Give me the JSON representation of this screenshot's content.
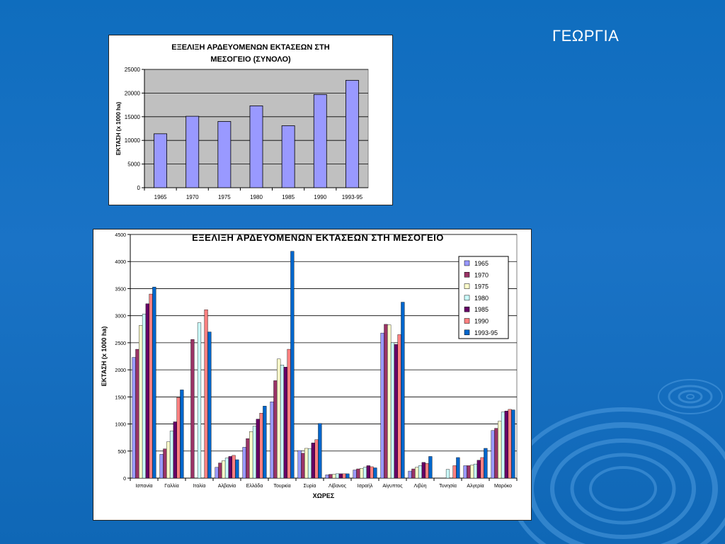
{
  "slide": {
    "title": "ΓΕΩΡΓΙΑ"
  },
  "colors": {
    "background": "#1170c2",
    "plot_area_1": "#c0c0c0",
    "bar_1": "#9999ff"
  },
  "chart_data": [
    {
      "type": "bar",
      "title": "ΕΞΕΛΙΞΗ  ΑΡΔΕΥΟΜΕΝΩΝ ΕΚΤΑΣΕΩΝ ΣΤΗ ΜΕΣΟΓΕΙΟ (ΣΥΝΟΛΟ)",
      "title_lines": [
        "ΕΞΕΛΙΞΗ  ΑΡΔΕΥΟΜΕΝΩΝ ΕΚΤΑΣΕΩΝ ΣΤΗ",
        "ΜΕΣΟΓΕΙΟ (ΣΥΝΟΛΟ)"
      ],
      "ylabel": "ΕΚΤΑΣΗ (x 1000 ha)",
      "xlabel": "",
      "categories": [
        "1965",
        "1970",
        "1975",
        "1980",
        "1985",
        "1990",
        "1993-95"
      ],
      "values": [
        11400,
        15100,
        14000,
        17300,
        13100,
        19700,
        22700
      ],
      "ylim": [
        0,
        25000
      ],
      "yticks": [
        "0",
        "5000",
        "10000",
        "15000",
        "20000",
        "25000"
      ],
      "grid": true,
      "legend": "none"
    },
    {
      "type": "bar",
      "title": "ΕΞΕΛΙΞΗ ΑΡΔΕΥΟΜΕΝΩΝ ΕΚΤΑΣΕΩΝ ΣΤΗ ΜΕΣΟΓΕΙΟ",
      "ylabel": "ΕΚΤΑΣΗ (x 1000 ha)",
      "xlabel": "ΧΩΡΕΣ",
      "categories": [
        "Ισπανία",
        "Γαλλία",
        "Ιταλία",
        "Αλβανία",
        "Ελλάδα",
        "Τουρκία",
        "Συρία",
        "Λίβανος",
        "Ισραήλ",
        "Αίγυπτος",
        "Λιβύη",
        "Τυνησία",
        "Αλγερία",
        "Μαρόκο"
      ],
      "ylim": [
        0,
        4500
      ],
      "yticks": [
        "0",
        "500",
        "1000",
        "1500",
        "2000",
        "2500",
        "3000",
        "3500",
        "4000",
        "4500"
      ],
      "grid": true,
      "legend": "top-right",
      "series": [
        {
          "name": "1965",
          "color": "#9999ff",
          "values": [
            2230,
            440,
            0,
            200,
            570,
            1410,
            510,
            60,
            150,
            2680,
            130,
            0,
            230,
            880
          ]
        },
        {
          "name": "1970",
          "color": "#993366",
          "values": [
            2380,
            540,
            2560,
            280,
            730,
            1800,
            460,
            70,
            170,
            2840,
            170,
            0,
            230,
            920
          ]
        },
        {
          "name": "1975",
          "color": "#ffffcc",
          "values": [
            2820,
            670,
            0,
            320,
            860,
            2200,
            550,
            70,
            180,
            2830,
            200,
            0,
            240,
            1050
          ]
        },
        {
          "name": "1980",
          "color": "#ccffff",
          "values": [
            3030,
            870,
            2870,
            370,
            960,
            2090,
            540,
            80,
            200,
            2500,
            230,
            160,
            260,
            1220
          ]
        },
        {
          "name": "1985",
          "color": "#660066",
          "values": [
            3220,
            1040,
            0,
            400,
            1090,
            2050,
            650,
            80,
            230,
            2470,
            290,
            0,
            330,
            1240
          ]
        },
        {
          "name": "1990",
          "color": "#ff8080",
          "values": [
            3400,
            1490,
            3110,
            420,
            1200,
            2380,
            710,
            80,
            210,
            2650,
            270,
            230,
            380,
            1270
          ]
        },
        {
          "name": "1993-95",
          "color": "#0066cc",
          "values": [
            3530,
            1630,
            2700,
            340,
            1330,
            4190,
            1010,
            80,
            190,
            3250,
            400,
            380,
            550,
            1260
          ]
        }
      ]
    }
  ]
}
